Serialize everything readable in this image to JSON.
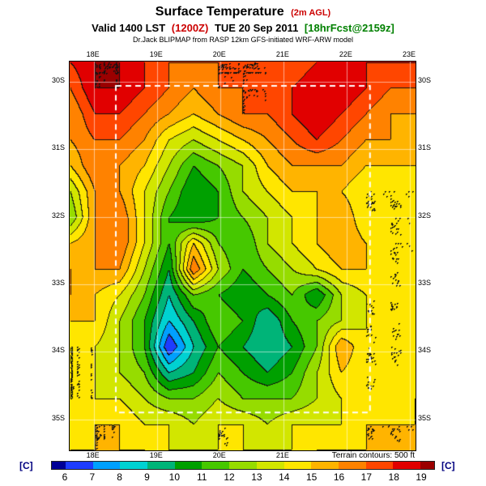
{
  "title": {
    "main": "Surface Temperature",
    "suffix": "(2m AGL)"
  },
  "subtitle": {
    "valid": "Valid 1400 LST",
    "zulu": "(1200Z)",
    "date": "TUE 20 Sep 2011",
    "fcst": "[18hrFcst@2159z]"
  },
  "model_line": "Dr.Jack BLIPMAP from RASP 12km GFS-initiated WRF-ARW model",
  "map": {
    "terrain_note": "Terrain contours: 500 ft",
    "top_labels": [
      "18E",
      "19E",
      "20E",
      "21E",
      "22E",
      "23E"
    ],
    "bottom_labels": [
      "18E",
      "19E",
      "20E",
      "21E"
    ],
    "left_labels": [
      "30S",
      "31S",
      "32S",
      "33S",
      "34S",
      "35S"
    ],
    "right_labels": [
      "30S",
      "31S",
      "32S",
      "33S",
      "34S",
      "35S"
    ]
  },
  "colorbar": {
    "unit_left": "[C]",
    "unit_right": "[C]",
    "ticks": [
      6,
      7,
      8,
      9,
      10,
      11,
      12,
      13,
      14,
      15,
      16,
      17,
      18,
      19
    ],
    "colors": [
      "#000096",
      "#1e3cff",
      "#00a0ff",
      "#00d2d2",
      "#00b478",
      "#00a000",
      "#46c800",
      "#96dc00",
      "#d2e600",
      "#ffe600",
      "#ffb400",
      "#ff8200",
      "#ff4600",
      "#e10000",
      "#9b0000"
    ]
  },
  "chart_data": {
    "type": "heatmap",
    "title": "Surface Temperature (2m AGL)",
    "units": "C",
    "x_axis": "longitude (deg E)",
    "y_axis": "latitude (deg S)",
    "lon_ticks": [
      18,
      19,
      20,
      21,
      22,
      23
    ],
    "lat_ticks": [
      30,
      31,
      32,
      33,
      34,
      35
    ],
    "lon_range": [
      17.62,
      23.09
    ],
    "lat_range": [
      29.7,
      35.46
    ],
    "levels": [
      6,
      7,
      8,
      9,
      10,
      11,
      12,
      13,
      14,
      15,
      16,
      17,
      18,
      19
    ],
    "inner_domain": {
      "lon": [
        18.35,
        22.37
      ],
      "lat": [
        30.06,
        34.9
      ]
    },
    "values": [
      [
        18,
        19,
        19,
        18,
        17,
        17,
        17,
        17,
        17,
        17,
        18,
        18,
        18,
        18,
        18
      ],
      [
        17,
        19,
        19,
        18,
        17,
        16,
        17,
        17,
        17,
        18,
        19,
        19,
        18,
        17,
        17
      ],
      [
        16,
        18,
        18,
        17,
        16,
        15,
        16,
        17,
        17,
        18,
        19,
        18,
        17,
        16,
        16
      ],
      [
        16,
        17,
        17,
        16,
        14,
        13,
        14,
        15,
        16,
        17,
        18,
        17,
        16,
        16,
        15
      ],
      [
        15,
        17,
        16,
        15,
        13,
        11,
        12,
        13,
        15,
        16,
        16,
        16,
        15,
        15,
        15
      ],
      [
        13,
        16,
        16,
        14,
        12,
        10,
        11,
        13,
        14,
        15,
        15,
        15,
        14,
        14,
        14
      ],
      [
        12,
        16,
        17,
        14,
        11,
        10,
        11,
        12,
        13,
        14,
        15,
        16,
        14,
        14,
        14
      ],
      [
        15,
        16,
        17,
        14,
        11,
        15,
        12,
        11,
        13,
        14,
        15,
        16,
        15,
        14,
        14
      ],
      [
        16,
        16,
        16,
        13,
        10,
        17,
        13,
        11,
        12,
        13,
        14,
        15,
        15,
        14,
        14
      ],
      [
        16,
        15,
        14,
        12,
        9,
        12,
        11,
        10,
        11,
        12,
        10,
        13,
        14,
        14,
        14
      ],
      [
        15,
        15,
        13,
        11,
        8,
        10,
        12,
        11,
        9,
        11,
        12,
        13,
        14,
        14,
        14
      ],
      [
        14,
        14,
        13,
        11,
        6,
        9,
        11,
        10,
        9,
        10,
        12,
        16,
        14,
        14,
        14
      ],
      [
        14,
        14,
        13,
        12,
        9,
        10,
        12,
        11,
        10,
        11,
        13,
        15,
        14,
        14,
        14
      ],
      [
        14,
        14,
        14,
        13,
        12,
        12,
        13,
        12,
        12,
        12,
        13,
        14,
        14,
        14,
        15
      ],
      [
        14,
        15,
        15,
        14,
        14,
        13,
        14,
        14,
        13,
        14,
        14,
        14,
        15,
        15,
        15
      ],
      [
        15,
        15,
        15,
        15,
        14,
        14,
        14,
        14,
        14,
        14,
        15,
        15,
        15,
        15,
        15
      ]
    ]
  }
}
